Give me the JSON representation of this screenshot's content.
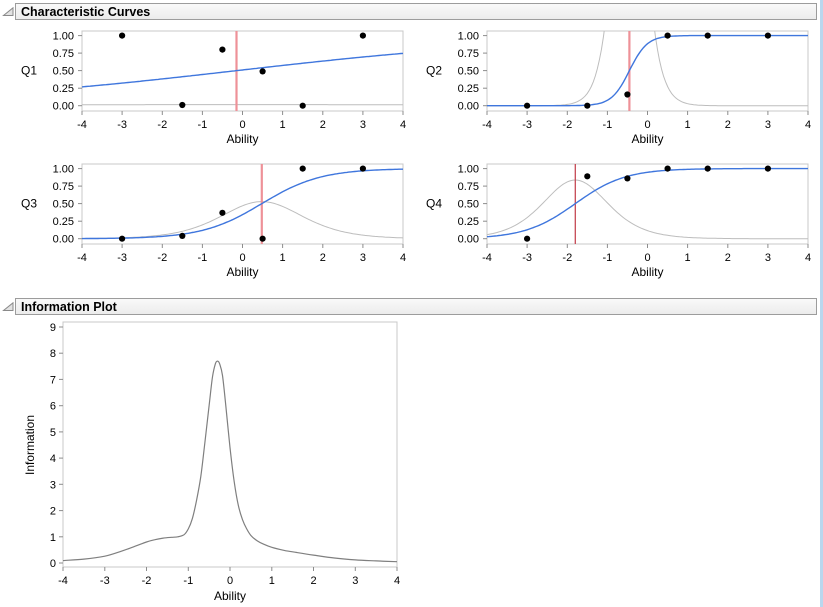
{
  "sections": [
    {
      "title": "Characteristic Curves"
    },
    {
      "title": "Information Plot"
    }
  ],
  "colors": {
    "icc_blue": "#3f76dd",
    "item_info_gray": "#bdbdbd",
    "total_info_gray": "#7f7f7f",
    "difficulty_pink": "#ee9198",
    "difficulty_red": "#c64853",
    "point": "#000000",
    "frame": "#c8c8c8",
    "tick": "#8c8c8c",
    "text": "#000000",
    "window_edge_blue": "#b9d7ee"
  },
  "chart_data": [
    {
      "type": "line",
      "item": "Q1",
      "xlabel": "Ability",
      "xlim": [
        -4,
        4
      ],
      "ylim": [
        0,
        1
      ],
      "xticks": [
        -4,
        -3,
        -2,
        -1,
        0,
        1,
        2,
        3,
        4
      ],
      "xtick_labels": [
        "-4",
        "-3",
        "-2",
        "-1",
        "0",
        "1",
        "2",
        "3",
        "4"
      ],
      "yticks": [
        0,
        0.25,
        0.5,
        0.75,
        1.0
      ],
      "ytick_labels": [
        "0.00",
        "0.25",
        "0.50",
        "0.75",
        "1.00"
      ],
      "points_x": [
        -3,
        -1.5,
        -0.5,
        0.5,
        1.5,
        3
      ],
      "points_y": [
        1.0,
        0.01,
        0.8,
        0.49,
        0.0,
        1.0
      ],
      "icc": {
        "a": 0.26,
        "b": -0.15
      },
      "info_curve": {
        "a": 0.26
      },
      "difficulty": -0.15,
      "difficulty_style": {
        "color": "#ee9198",
        "width": 2.2
      }
    },
    {
      "type": "line",
      "item": "Q2",
      "xlabel": "Ability",
      "xlim": [
        -4,
        4
      ],
      "ylim": [
        0,
        1
      ],
      "xticks": [
        -4,
        -3,
        -2,
        -1,
        0,
        1,
        2,
        3,
        4
      ],
      "xtick_labels": [
        "-4",
        "-3",
        "-2",
        "-1",
        "0",
        "1",
        "2",
        "3",
        "4"
      ],
      "yticks": [
        0,
        0.25,
        0.5,
        0.75,
        1.0
      ],
      "ytick_labels": [
        "0.00",
        "0.25",
        "0.50",
        "0.75",
        "1.00"
      ],
      "points_x": [
        -3,
        -1.5,
        -0.5,
        0.5,
        1.5,
        3
      ],
      "points_y": [
        0.0,
        0.0,
        0.16,
        1.0,
        1.0,
        1.0
      ],
      "icc": {
        "a": 4.5,
        "b": -0.45
      },
      "info_curve": {
        "a": 4.5
      },
      "difficulty": -0.45,
      "difficulty_style": {
        "color": "#ee9198",
        "width": 2.2
      }
    },
    {
      "type": "line",
      "item": "Q3",
      "xlabel": "Ability",
      "xlim": [
        -4,
        4
      ],
      "ylim": [
        0,
        1
      ],
      "xticks": [
        -4,
        -3,
        -2,
        -1,
        0,
        1,
        2,
        3,
        4
      ],
      "xtick_labels": [
        "-4",
        "-3",
        "-2",
        "-1",
        "0",
        "1",
        "2",
        "3",
        "4"
      ],
      "yticks": [
        0,
        0.25,
        0.5,
        0.75,
        1.0
      ],
      "ytick_labels": [
        "0.00",
        "0.25",
        "0.50",
        "0.75",
        "1.00"
      ],
      "points_x": [
        -3,
        -1.5,
        -0.5,
        0.5,
        1.5,
        3
      ],
      "points_y": [
        0.0,
        0.04,
        0.37,
        0.0,
        1.0,
        1.0
      ],
      "icc": {
        "a": 1.35,
        "b": 0.48
      },
      "info_curve": {
        "a": 1.455
      },
      "difficulty": 0.48,
      "difficulty_style": {
        "color": "#ee9198",
        "width": 2.2
      }
    },
    {
      "type": "line",
      "item": "Q4",
      "xlabel": "Ability",
      "xlim": [
        -4,
        4
      ],
      "ylim": [
        0,
        1
      ],
      "xticks": [
        -4,
        -3,
        -2,
        -1,
        0,
        1,
        2,
        3,
        4
      ],
      "xtick_labels": [
        "-4",
        "-3",
        "-2",
        "-1",
        "0",
        "1",
        "2",
        "3",
        "4"
      ],
      "yticks": [
        0,
        0.25,
        0.5,
        0.75,
        1.0
      ],
      "ytick_labels": [
        "0.00",
        "0.25",
        "0.50",
        "0.75",
        "1.00"
      ],
      "points_x": [
        -3,
        -1.5,
        -0.5,
        0.5,
        1.5,
        3
      ],
      "points_y": [
        0.0,
        0.89,
        0.86,
        1.0,
        1.0,
        1.0
      ],
      "icc": {
        "a": 1.6,
        "b": -1.8
      },
      "info_curve": {
        "a": 1.83
      },
      "difficulty": -1.8,
      "difficulty_style": {
        "color": "#c64853",
        "width": 1.3
      }
    },
    {
      "type": "line",
      "title": "Information Plot",
      "xlabel": "Ability",
      "ylabel": "Information",
      "xlim": [
        -4,
        4
      ],
      "ylim": [
        0,
        9
      ],
      "xticks": [
        -4,
        -3,
        -2,
        -1,
        0,
        1,
        2,
        3,
        4
      ],
      "xtick_labels": [
        "-4",
        "-3",
        "-2",
        "-1",
        "0",
        "1",
        "2",
        "3",
        "4"
      ],
      "yticks": [
        0,
        1,
        2,
        3,
        4,
        5,
        6,
        7,
        8,
        9
      ],
      "ytick_labels": [
        "0",
        "1",
        "2",
        "3",
        "4",
        "5",
        "6",
        "7",
        "8",
        "9"
      ],
      "x": [
        -4,
        -3.5,
        -3,
        -2.6,
        -2.3,
        -2,
        -1.8,
        -1.6,
        -1.4,
        -1.25,
        -1.1,
        -1.0,
        -0.9,
        -0.8,
        -0.7,
        -0.6,
        -0.5,
        -0.42,
        -0.35,
        -0.3,
        -0.25,
        -0.18,
        -0.1,
        0,
        0.1,
        0.2,
        0.3,
        0.4,
        0.5,
        0.65,
        0.8,
        1.0,
        1.3,
        1.6,
        2.0,
        2.5,
        3.0,
        3.5,
        4.0
      ],
      "y": [
        0.09,
        0.15,
        0.26,
        0.45,
        0.62,
        0.8,
        0.89,
        0.95,
        0.98,
        1.0,
        1.08,
        1.3,
        1.7,
        2.4,
        3.3,
        4.6,
        6.0,
        7.1,
        7.6,
        7.7,
        7.6,
        7.15,
        6.0,
        4.4,
        3.1,
        2.2,
        1.65,
        1.3,
        1.05,
        0.85,
        0.72,
        0.6,
        0.48,
        0.4,
        0.3,
        0.19,
        0.12,
        0.08,
        0.05
      ],
      "peak": {
        "x": -0.3,
        "y": 7.7
      }
    }
  ]
}
